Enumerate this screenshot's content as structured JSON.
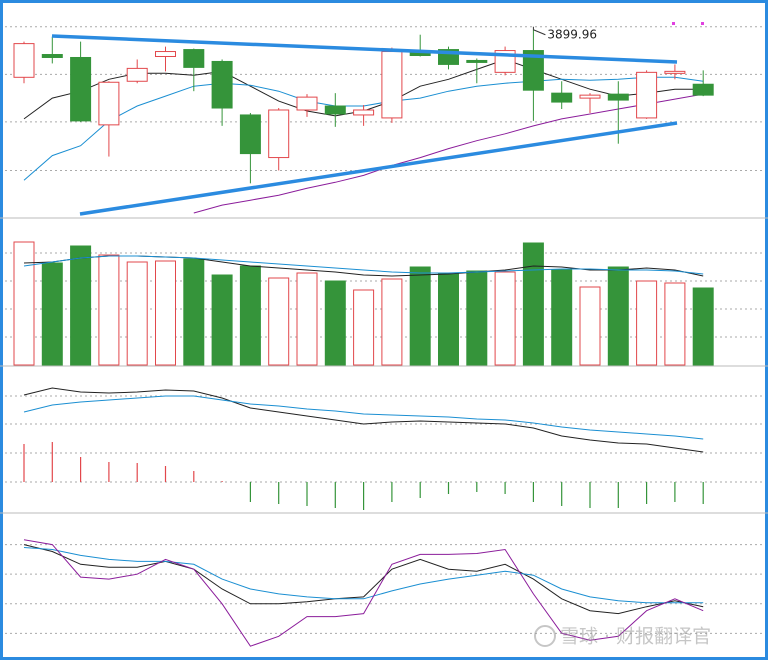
{
  "chart_data": [
    {
      "type": "candlestick",
      "open": [
        3828,
        3862.5,
        3858,
        3756,
        3822,
        3859.5,
        3870,
        3852,
        3771,
        3706.5,
        3778.5,
        3784.5,
        3771,
        3766.5,
        3865.5,
        3870,
        3853.5,
        3835.5,
        3868.5,
        3804,
        3796.5,
        3802.5,
        3766.5,
        3834,
        3817.5
      ],
      "high": [
        3882,
        3889.5,
        3882,
        3822,
        3855,
        3874.5,
        3871.5,
        3855,
        3774,
        3781.5,
        3802.5,
        3804,
        3786,
        3873,
        3892.5,
        3874.5,
        3856.5,
        3874.5,
        3899.96,
        3822,
        3804,
        3822,
        3838.5,
        3847.5,
        3838.5
      ],
      "low": [
        3819,
        3849,
        3760.5,
        3708,
        3819,
        3837,
        3807,
        3754.5,
        3667.5,
        3687,
        3768,
        3753,
        3754.5,
        3759,
        3859.5,
        3840,
        3819,
        3831,
        3762,
        3780,
        3774,
        3727.5,
        3765,
        3825,
        3799.5
      ],
      "close": [
        3879,
        3858,
        3762,
        3820.5,
        3841.5,
        3867,
        3843,
        3781.5,
        3712.5,
        3778.5,
        3798,
        3772.5,
        3778.5,
        3867,
        3861,
        3847.5,
        3850.5,
        3868.5,
        3808.5,
        3790.5,
        3801,
        3793.5,
        3835.5,
        3837,
        3801
      ],
      "up_color": "#e2474b",
      "down_color": "#35943a",
      "annotations": [
        3899.96
      ],
      "series": [
        {
          "color": "#222222",
          "values": [
            3765,
            3796.5,
            3807,
            3825,
            3834,
            3834,
            3831,
            3837,
            3814.5,
            3792,
            3777,
            3769.5,
            3777,
            3792,
            3814.5,
            3825,
            3840,
            3855,
            3840,
            3825,
            3810,
            3799.5,
            3804,
            3810,
            3810
          ]
        },
        {
          "color": "#1b8fd2",
          "values": [
            3672,
            3709.5,
            3724.5,
            3762,
            3784.5,
            3799.5,
            3814.5,
            3819,
            3816,
            3807,
            3792,
            3784.5,
            3784.5,
            3792,
            3796.5,
            3807,
            3814.5,
            3819,
            3822,
            3825,
            3823.5,
            3825,
            3828,
            3828,
            3822
          ]
        },
        {
          "color": "#8b1d9b",
          "values": [
            null,
            null,
            null,
            null,
            null,
            null,
            3622.5,
            3634.5,
            3642,
            3649.5,
            3660,
            3669,
            3679.5,
            3694.5,
            3706.5,
            3720,
            3732,
            3742.5,
            3754.5,
            3765,
            3772.5,
            3780,
            3787.5,
            3795,
            3802.5
          ]
        }
      ],
      "ylim": [
        3615,
        3942
      ],
      "gridlines": [
        3904.5,
        3832.5,
        3760.5,
        3687
      ]
    },
    {
      "type": "bar",
      "values": [
        123,
        102,
        119,
        110,
        103,
        104,
        106,
        90,
        99,
        87,
        92,
        84,
        75,
        86,
        98,
        91,
        94,
        93,
        122,
        95,
        78,
        98,
        84,
        82,
        77
      ],
      "colors": [
        "#e2474b",
        "#35943a",
        "#35943a",
        "#e2474b",
        "#e2474b",
        "#e2474b",
        "#35943a",
        "#35943a",
        "#35943a",
        "#e2474b",
        "#e2474b",
        "#35943a",
        "#e2474b",
        "#e2474b",
        "#35943a",
        "#35943a",
        "#35943a",
        "#e2474b",
        "#35943a",
        "#35943a",
        "#e2474b",
        "#35943a",
        "#e2474b",
        "#e2474b",
        "#35943a"
      ],
      "hollow_color": "#e2474b",
      "series": [
        {
          "color": "#222222",
          "values": [
            102,
            103,
            107,
            109,
            109,
            108,
            107,
            103,
            99,
            97,
            95,
            93,
            90,
            89,
            90,
            91,
            93,
            95,
            99,
            98,
            95,
            95,
            97,
            95,
            89
          ]
        },
        {
          "color": "#1b8fd2",
          "values": [
            99,
            103,
            107,
            109,
            109,
            108,
            107,
            105,
            103,
            101,
            99,
            97,
            95,
            93,
            92,
            92,
            93,
            94,
            95,
            96,
            96,
            95,
            95,
            94,
            91
          ]
        }
      ],
      "ylim": [
        0,
        145
      ],
      "gridlines": [
        112,
        84,
        56,
        28
      ]
    },
    {
      "type": "macd",
      "values": [
        38,
        40,
        25,
        20,
        19,
        16,
        11,
        1,
        -20,
        -22,
        -24,
        -26,
        -28,
        -20,
        -16,
        -12,
        -10,
        -12,
        -20,
        -24,
        -26,
        -26,
        -22,
        -20,
        -22
      ],
      "up_color": "#e2474b",
      "down_color": "#35943a",
      "series": [
        {
          "color": "#222222",
          "values": [
            87,
            94,
            90,
            89,
            90,
            92,
            91,
            84,
            74,
            70,
            66,
            62,
            58,
            60,
            61,
            60,
            59,
            58,
            54,
            46,
            42,
            39,
            38,
            34,
            30
          ]
        },
        {
          "color": "#1b8fd2",
          "values": [
            70,
            77,
            80,
            82,
            84,
            86,
            86,
            82,
            78,
            76,
            73,
            71,
            68,
            67,
            66,
            65,
            63,
            62,
            59,
            55,
            52,
            50,
            48,
            46,
            43
          ]
        }
      ],
      "ylim": [
        -30,
        114
      ],
      "gridlines": [
        86,
        58,
        29,
        0
      ]
    },
    {
      "type": "line",
      "series": [
        {
          "color": "#222222",
          "values": [
            115,
            108,
            95,
            92,
            92,
            98,
            90,
            70,
            55,
            55,
            57,
            60,
            62,
            90,
            100,
            90,
            88,
            95,
            80,
            60,
            48,
            45,
            52,
            58,
            52
          ]
        },
        {
          "color": "#1b8fd2",
          "values": [
            112,
            110,
            104,
            100,
            98,
            98,
            95,
            80,
            70,
            65,
            62,
            60,
            60,
            68,
            75,
            80,
            84,
            88,
            84,
            70,
            62,
            58,
            56,
            56,
            56
          ]
        },
        {
          "color": "#8b1d9b",
          "values": [
            120,
            115,
            82,
            80,
            85,
            100,
            90,
            55,
            12,
            22,
            42,
            42,
            45,
            95,
            105,
            105,
            106,
            110,
            65,
            25,
            18,
            22,
            48,
            60,
            48
          ]
        }
      ],
      "ylim": [
        0,
        145
      ],
      "gridlines": [
        115,
        85,
        55,
        25
      ]
    }
  ],
  "watermark": "雪球 · 财报翻译官"
}
